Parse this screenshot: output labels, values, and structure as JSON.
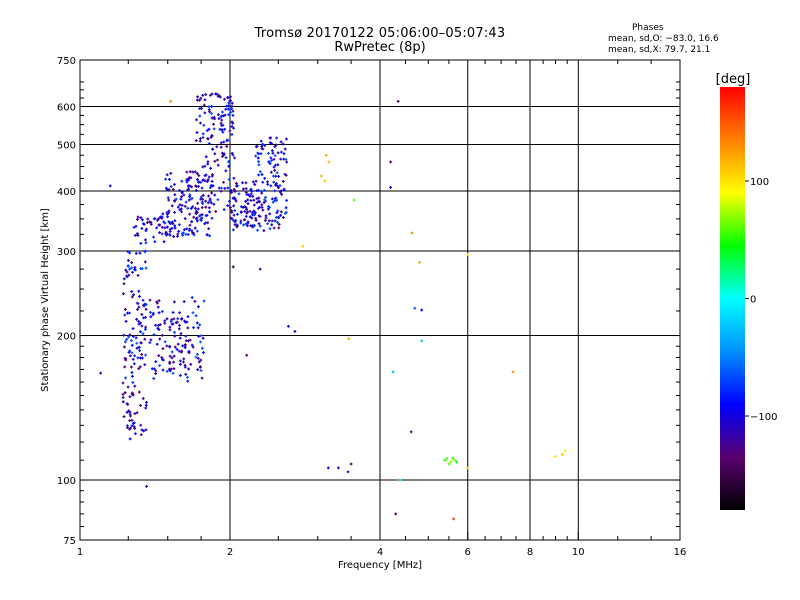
{
  "header": {
    "title_line1": "Tromsø 20170122 05:06:00–05:07:43",
    "title_line2": "RwPretec (8p)",
    "stats_heading": "Phases",
    "stats_line1": "mean, sd,O: −83.0, 16.6",
    "stats_line2": "mean, sd,X:  79.7, 21.1"
  },
  "chart_data": {
    "type": "scatter",
    "title": "Tromsø 20170122 05:06:00–05:07:43",
    "subtitle": "RwPretec (8p)",
    "xlabel": "Frequency [MHz]",
    "ylabel": "Stationary phase Virtual Height [km]",
    "x_scale": "log",
    "y_scale": "log",
    "xlim": [
      1,
      16
    ],
    "ylim": [
      75,
      750
    ],
    "x_ticks": [
      1,
      2,
      4,
      6,
      8,
      10,
      16
    ],
    "x_tick_labels": [
      "1",
      "2",
      "4",
      "6",
      "8",
      "10",
      "16"
    ],
    "y_ticks": [
      75,
      100,
      200,
      300,
      400,
      500,
      600,
      750
    ],
    "y_tick_labels": [
      "75",
      "100",
      "200",
      "300",
      "400",
      "500",
      "600",
      "750"
    ],
    "grid": true,
    "colorbar": {
      "label": "[deg]",
      "range": [
        -180,
        180
      ],
      "ticks": [
        -100,
        0,
        100
      ],
      "tick_labels": [
        "−100",
        "0",
        "100"
      ],
      "colors": [
        "#000000",
        "#5a0070",
        "#0000ff",
        "#0090ff",
        "#00ffff",
        "#00ff00",
        "#ffff00",
        "#ff8000",
        "#ff0000"
      ]
    },
    "series": [
      {
        "clusters": [
          {
            "x_range": [
              1.22,
              1.36
            ],
            "y_range": [
              120,
              300
            ],
            "n": 150,
            "phase_range": [
              -140,
              -60
            ]
          },
          {
            "x_range": [
              1.38,
              1.78
            ],
            "y_range": [
              160,
              240
            ],
            "n": 140,
            "phase_range": [
              -140,
              -60
            ]
          },
          {
            "x_range": [
              1.28,
              1.48
            ],
            "y_range": [
              310,
              360
            ],
            "n": 40,
            "phase_range": [
              -130,
              -70
            ]
          },
          {
            "x_range": [
              1.48,
              1.85
            ],
            "y_range": [
              320,
              440
            ],
            "n": 160,
            "phase_range": [
              -130,
              -65
            ]
          },
          {
            "x_range": [
              1.7,
              2.05
            ],
            "y_range": [
              360,
              640
            ],
            "n": 160,
            "phase_range": [
              -140,
              -60
            ]
          },
          {
            "x_range": [
              2.0,
              2.3
            ],
            "y_range": [
              330,
              420
            ],
            "n": 90,
            "phase_range": [
              -130,
              -70
            ]
          },
          {
            "x_range": [
              2.25,
              2.6
            ],
            "y_range": [
              330,
              520
            ],
            "n": 130,
            "phase_range": [
              -130,
              -60
            ]
          }
        ],
        "points": [
          {
            "x": 1.15,
            "y": 410,
            "phase": -90
          },
          {
            "x": 1.1,
            "y": 167,
            "phase": -120
          },
          {
            "x": 1.36,
            "y": 97,
            "phase": -120
          },
          {
            "x": 1.52,
            "y": 615,
            "phase": 130
          },
          {
            "x": 2.03,
            "y": 278,
            "phase": -150
          },
          {
            "x": 2.16,
            "y": 182,
            "phase": -130
          },
          {
            "x": 2.3,
            "y": 275,
            "phase": -125
          },
          {
            "x": 2.62,
            "y": 209,
            "phase": -90
          },
          {
            "x": 2.7,
            "y": 204,
            "phase": -100
          },
          {
            "x": 2.8,
            "y": 307,
            "phase": 110
          },
          {
            "x": 3.05,
            "y": 430,
            "phase": 115
          },
          {
            "x": 3.1,
            "y": 420,
            "phase": 110
          },
          {
            "x": 3.12,
            "y": 475,
            "phase": 120
          },
          {
            "x": 3.16,
            "y": 460,
            "phase": 115
          },
          {
            "x": 3.15,
            "y": 106,
            "phase": -95
          },
          {
            "x": 3.3,
            "y": 106,
            "phase": -110
          },
          {
            "x": 3.45,
            "y": 104,
            "phase": -110
          },
          {
            "x": 3.5,
            "y": 108,
            "phase": -130
          },
          {
            "x": 3.46,
            "y": 197,
            "phase": 120
          },
          {
            "x": 3.55,
            "y": 383,
            "phase": 60
          },
          {
            "x": 4.2,
            "y": 460,
            "phase": -140
          },
          {
            "x": 4.2,
            "y": 407,
            "phase": -100
          },
          {
            "x": 4.25,
            "y": 168,
            "phase": -30
          },
          {
            "x": 4.35,
            "y": 615,
            "phase": -140
          },
          {
            "x": 4.38,
            "y": 100,
            "phase": -20
          },
          {
            "x": 4.3,
            "y": 85,
            "phase": -130
          },
          {
            "x": 4.62,
            "y": 126,
            "phase": -130
          },
          {
            "x": 4.64,
            "y": 327,
            "phase": 130
          },
          {
            "x": 4.7,
            "y": 228,
            "phase": -60
          },
          {
            "x": 4.8,
            "y": 284,
            "phase": 120
          },
          {
            "x": 4.85,
            "y": 226,
            "phase": -90
          },
          {
            "x": 4.85,
            "y": 195,
            "phase": -20
          },
          {
            "x": 5.4,
            "y": 110,
            "phase": 50
          },
          {
            "x": 5.5,
            "y": 108,
            "phase": 60
          },
          {
            "x": 5.6,
            "y": 111,
            "phase": 55
          },
          {
            "x": 5.7,
            "y": 109,
            "phase": 40
          },
          {
            "x": 5.55,
            "y": 109,
            "phase": 70
          },
          {
            "x": 5.45,
            "y": 111,
            "phase": 60
          },
          {
            "x": 5.65,
            "y": 110,
            "phase": 65
          },
          {
            "x": 5.62,
            "y": 83,
            "phase": 160
          },
          {
            "x": 6.0,
            "y": 106,
            "phase": 110
          },
          {
            "x": 6.0,
            "y": 295,
            "phase": 100
          },
          {
            "x": 7.4,
            "y": 168,
            "phase": 130
          },
          {
            "x": 9.0,
            "y": 112,
            "phase": 100
          },
          {
            "x": 9.3,
            "y": 113,
            "phase": 110
          },
          {
            "x": 9.4,
            "y": 115,
            "phase": 95
          }
        ]
      }
    ]
  }
}
